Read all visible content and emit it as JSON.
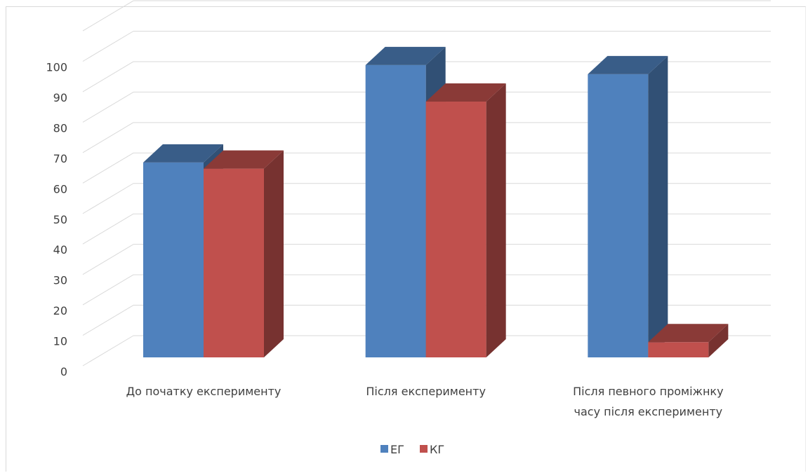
{
  "chart_data": {
    "type": "bar",
    "categories": [
      [
        "До початку експерименту"
      ],
      [
        "Після експерименту"
      ],
      [
        "Після певного проміжнку",
        "часу після експерименту"
      ]
    ],
    "series": [
      {
        "name": "ЕГ",
        "values": [
          64,
          96,
          93
        ],
        "color": "#4f81bd"
      },
      {
        "name": "КГ",
        "values": [
          62,
          84,
          5
        ],
        "color": "#c0504d"
      }
    ],
    "ylim": [
      0,
      110
    ],
    "yticks": [
      0,
      10,
      20,
      30,
      40,
      50,
      60,
      70,
      80,
      90,
      100
    ],
    "grid": true,
    "legend": "bottom",
    "style": "3d-clustered-column"
  }
}
